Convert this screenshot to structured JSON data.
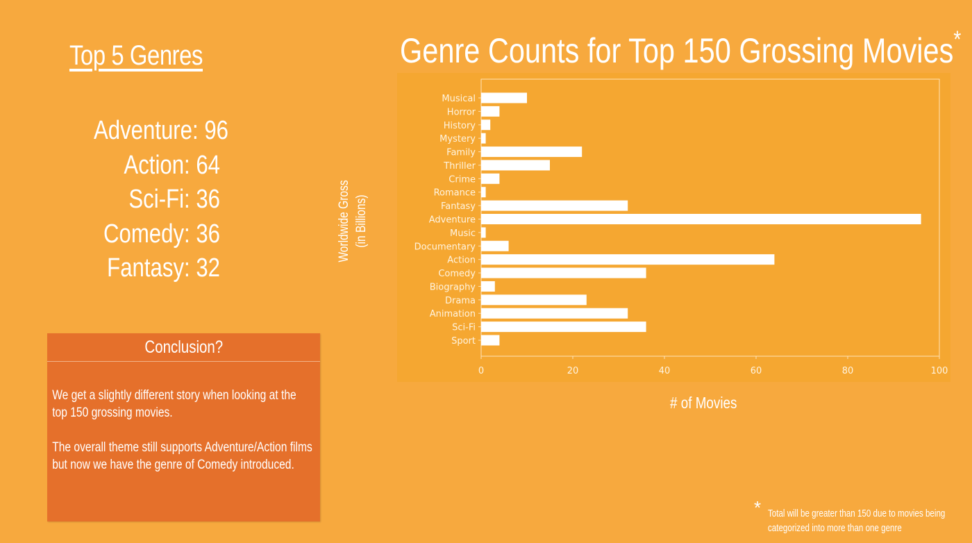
{
  "left_panel": {
    "title": "Top 5 Genres",
    "top_genres": [
      "Adventure: 96",
      "Action: 64",
      "Sci-Fi: 36",
      "Comedy: 36",
      "Fantasy: 32"
    ]
  },
  "conclusion": {
    "heading": "Conclusion?",
    "paragraph_1": "We get a slightly different story when looking at the top 150 grossing movies.",
    "paragraph_2": "The overall theme still supports Adventure/Action films but now we have the genre of Comedy introduced."
  },
  "footnote": {
    "star": "*",
    "text": "Total will be greater than 150 due to movies being categorized into more than one genre"
  },
  "colors": {
    "background": "#F7A93E",
    "plot_background": "#F5A731",
    "conclusion_box": "#E5702B",
    "bars": "#FFFFFF"
  },
  "chart_data": {
    "type": "bar",
    "orientation": "horizontal",
    "title": "Genre Counts for Top 150 Grossing Movies",
    "title_marker": "*",
    "xlabel": "# of Movies",
    "ylabel_line1": "Worldwide Gross",
    "ylabel_line2": "(in Billions)",
    "xlim": [
      0,
      100
    ],
    "xticks": [
      0,
      20,
      40,
      60,
      80,
      100
    ],
    "grid": false,
    "categories": [
      "Musical",
      "Horror",
      "History",
      "Mystery",
      "Family",
      "Thriller",
      "Crime",
      "Romance",
      "Fantasy",
      "Adventure",
      "Music",
      "Documentary",
      "Action",
      "Comedy",
      "Biography",
      "Drama",
      "Animation",
      "Sci-Fi",
      "Sport"
    ],
    "values": [
      10,
      4,
      2,
      1,
      22,
      15,
      4,
      1,
      32,
      96,
      1,
      6,
      64,
      36,
      3,
      23,
      32,
      36,
      4
    ]
  }
}
